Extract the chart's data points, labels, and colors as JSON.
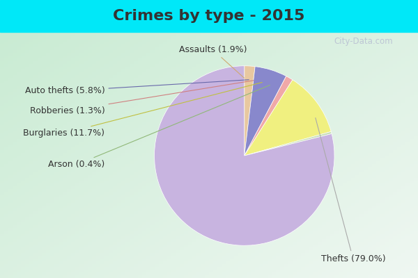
{
  "title": "Crimes by type - 2015",
  "labels": [
    "Thefts",
    "Burglaries",
    "Auto thefts",
    "Assaults",
    "Robberies",
    "Arson"
  ],
  "values": [
    79.0,
    11.7,
    5.8,
    1.9,
    1.3,
    0.4
  ],
  "colors": [
    "#c8b4e0",
    "#f0f080",
    "#8888cc",
    "#e8c8a0",
    "#f0a8a8",
    "#c8e0b8"
  ],
  "label_texts": [
    "Thefts (79.0%)",
    "Burglaries (11.7%)",
    "Auto thefts (5.8%)",
    "Assaults (1.9%)",
    "Robberies (1.3%)",
    "Arson (0.4%)"
  ],
  "line_colors": [
    "#aaaaaa",
    "#cccc88",
    "#8888cc",
    "#e8c090",
    "#f0a8a8",
    "#b8d8a8"
  ],
  "title_color": "#333333",
  "title_fontsize": 16,
  "label_fontsize": 9,
  "cyan_bar_color": "#00e8f8",
  "bg_color_left": "#c8e8d0",
  "bg_color_right": "#e8f0e8"
}
